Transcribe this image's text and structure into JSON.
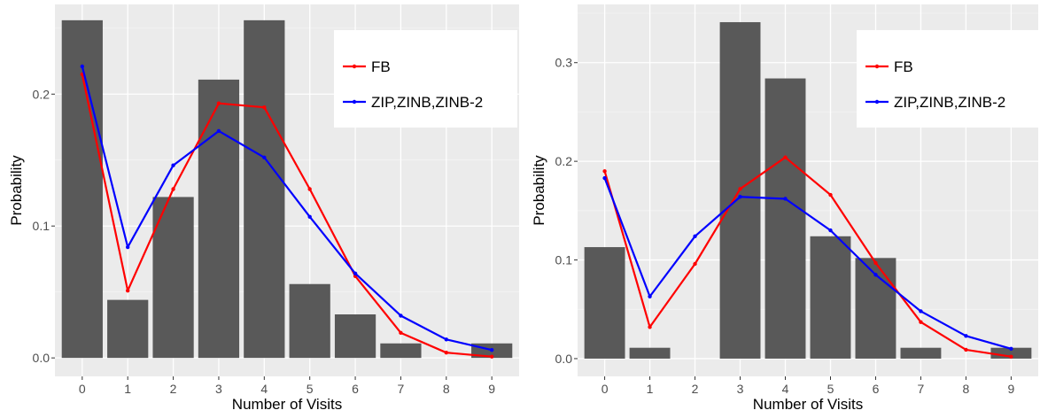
{
  "chart_data": [
    {
      "type": "bar",
      "xlabel": "Number of Visits",
      "ylabel": "Probability",
      "categories": [
        "0",
        "1",
        "2",
        "3",
        "4",
        "5",
        "6",
        "7",
        "8",
        "9"
      ],
      "bar_series": {
        "values": [
          0.256,
          0.044,
          0.122,
          0.211,
          0.256,
          0.056,
          0.033,
          0.011,
          0.0,
          0.011
        ],
        "color": "#595959"
      },
      "lines": [
        {
          "name": "FB",
          "color": "#ff0000",
          "values": [
            0.215,
            0.051,
            0.128,
            0.193,
            0.19,
            0.128,
            0.062,
            0.019,
            0.004,
            0.001
          ]
        },
        {
          "name": "ZIP,ZINB,ZINB-2",
          "color": "#0000ff",
          "values": [
            0.221,
            0.084,
            0.146,
            0.172,
            0.152,
            0.107,
            0.064,
            0.032,
            0.014,
            0.006
          ]
        }
      ],
      "ylim": [
        -0.014,
        0.268
      ],
      "yticks": [
        0.0,
        0.1,
        0.2
      ],
      "ytick_labels": [
        "0.0",
        "0.1",
        "0.2"
      ],
      "grid": true,
      "legend_position": "top-right",
      "background": "#ebebeb"
    },
    {
      "type": "bar",
      "xlabel": "Number of Visits",
      "ylabel": "Probability",
      "categories": [
        "0",
        "1",
        "2",
        "3",
        "4",
        "5",
        "6",
        "7",
        "8",
        "9"
      ],
      "bar_series": {
        "values": [
          0.113,
          0.011,
          0.0,
          0.341,
          0.284,
          0.124,
          0.102,
          0.011,
          0.0,
          0.011
        ],
        "color": "#595959"
      },
      "lines": [
        {
          "name": "FB",
          "color": "#ff0000",
          "values": [
            0.19,
            0.032,
            0.096,
            0.172,
            0.204,
            0.166,
            0.097,
            0.037,
            0.009,
            0.002
          ]
        },
        {
          "name": "ZIP,ZINB,ZINB-2",
          "color": "#0000ff",
          "values": [
            0.183,
            0.063,
            0.124,
            0.164,
            0.162,
            0.13,
            0.085,
            0.048,
            0.023,
            0.01
          ]
        }
      ],
      "ylim": [
        -0.018,
        0.359
      ],
      "yticks": [
        0.0,
        0.1,
        0.2,
        0.3
      ],
      "ytick_labels": [
        "0.0",
        "0.1",
        "0.2",
        "0.3"
      ],
      "grid": true,
      "legend_position": "top-right",
      "background": "#ebebeb"
    }
  ]
}
